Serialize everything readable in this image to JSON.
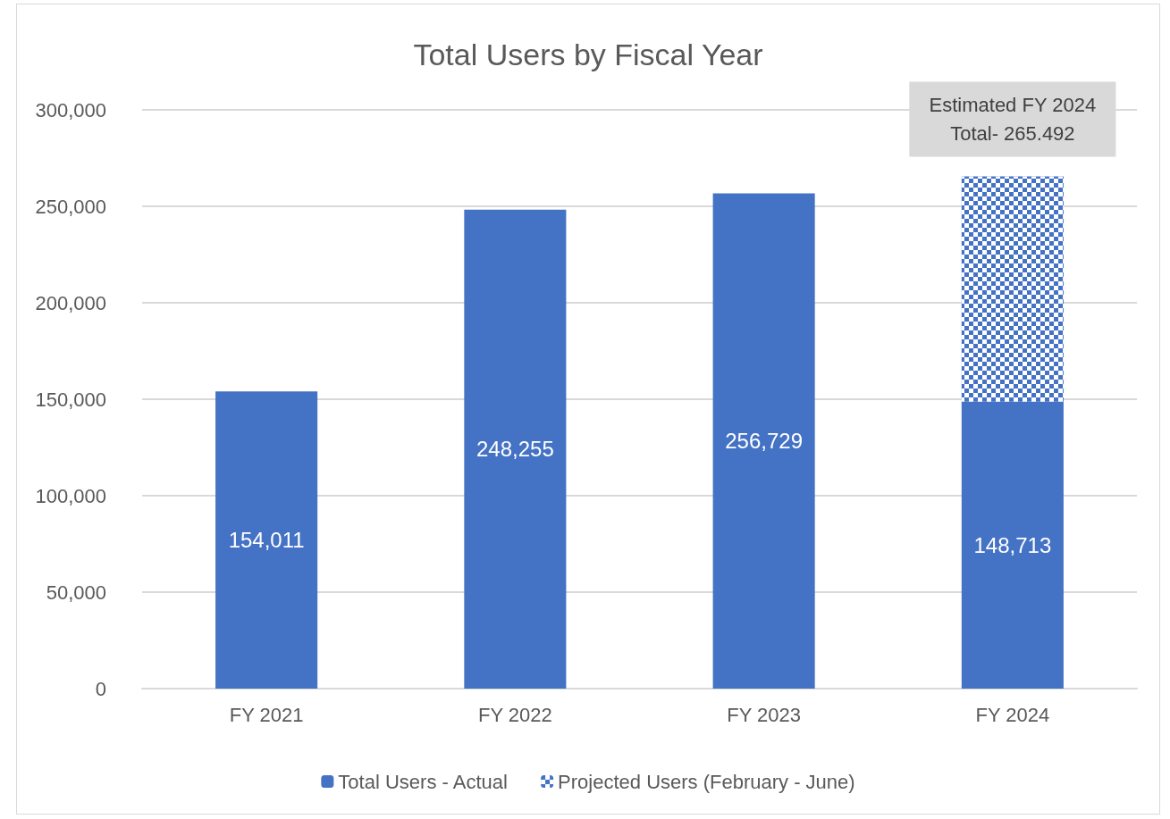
{
  "chart_data": {
    "type": "bar",
    "title": "Total Users by Fiscal Year",
    "categories": [
      "FY 2021",
      "FY 2022",
      "FY 2023",
      "FY 2024"
    ],
    "stacked": true,
    "series": [
      {
        "name": "Total Users - Actual",
        "color": "#4472c4",
        "values": [
          154011,
          248255,
          256729,
          148713
        ],
        "value_labels": [
          "154,011",
          "248,255",
          "256,729",
          "148,713"
        ]
      },
      {
        "name": "Projected Users (February - June)",
        "color": "#4472c4",
        "values": [
          null,
          null,
          null,
          116779
        ]
      }
    ],
    "ylim": [
      0,
      300000
    ],
    "yticks": [
      {
        "value": 0,
        "label": "0"
      },
      {
        "value": 50000,
        "label": "50,000"
      },
      {
        "value": 100000,
        "label": "100,000"
      },
      {
        "value": 150000,
        "label": "150,000"
      },
      {
        "value": 200000,
        "label": "200,000"
      },
      {
        "value": 250000,
        "label": "250,000"
      },
      {
        "value": 300000,
        "label": "300,000"
      }
    ],
    "annotations": [
      {
        "text": "Estimated FY 2024\nTotal- 265.492",
        "x": "FY 2024",
        "y": 265492
      }
    ],
    "grid": "y",
    "legend": "bottom"
  }
}
